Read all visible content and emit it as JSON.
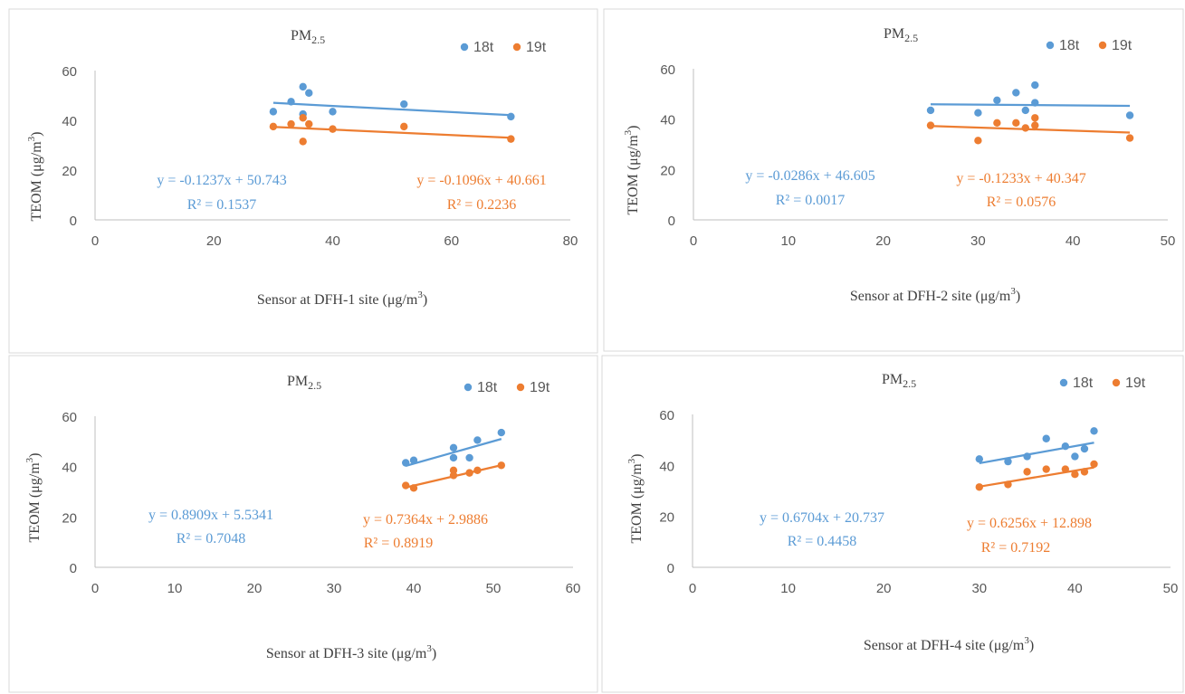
{
  "colors": {
    "18t": "#5b9bd5",
    "19t": "#ed7d31"
  },
  "chart_data": [
    {
      "type": "scatter",
      "title": "PM",
      "title_sub": "2.5",
      "xlabel": "Sensor at DFH-1 site (μg/m",
      "xlabel_sup": "3",
      "xlabel_end": ")",
      "ylabel": "TEOM (μg/m",
      "ylabel_sup": "3",
      "ylabel_end": ")",
      "xlim": [
        0,
        80
      ],
      "ylim": [
        0,
        60
      ],
      "xticks": [
        "0",
        "20",
        "40",
        "60",
        "80"
      ],
      "yticks": [
        "0",
        "20",
        "40",
        "60"
      ],
      "legend_position": "top-right",
      "series": [
        {
          "name": "18t",
          "color": "#5b9bd5",
          "x": [
            30,
            33,
            35,
            35,
            36,
            40,
            52,
            70
          ],
          "y": [
            43.5,
            47.5,
            53.5,
            42.5,
            51,
            43.5,
            46.5,
            41.5
          ],
          "trend": {
            "slope": -0.1237,
            "intercept": 50.743,
            "x": [
              30,
              70
            ]
          },
          "equation": "y = -0.1237x + 50.743",
          "r2": "R² = 0.1537"
        },
        {
          "name": "19t",
          "color": "#ed7d31",
          "x": [
            30,
            33,
            35,
            35,
            36,
            40,
            52,
            70
          ],
          "y": [
            37.5,
            38.5,
            41,
            31.5,
            38.5,
            36.5,
            37.5,
            32.5
          ],
          "trend": {
            "slope": -0.1096,
            "intercept": 40.661,
            "x": [
              30,
              70
            ]
          },
          "equation": "y = -0.1096x + 40.661",
          "r2": "R² = 0.2236"
        }
      ]
    },
    {
      "type": "scatter",
      "title": "PM",
      "title_sub": "2.5",
      "xlabel": "Sensor at DFH-2 site (μg/m",
      "xlabel_sup": "3",
      "xlabel_end": ")",
      "ylabel": "TEOM (μg/m",
      "ylabel_sup": "3",
      "ylabel_end": ")",
      "xlim": [
        0,
        50
      ],
      "ylim": [
        0,
        60
      ],
      "xticks": [
        "0",
        "10",
        "20",
        "30",
        "40",
        "50"
      ],
      "yticks": [
        "0",
        "20",
        "40",
        "60"
      ],
      "legend_position": "top-right",
      "series": [
        {
          "name": "18t",
          "color": "#5b9bd5",
          "x": [
            25,
            30,
            32,
            34,
            35,
            36,
            36,
            46
          ],
          "y": [
            43.5,
            42.5,
            47.5,
            50.5,
            43.5,
            46.5,
            53.5,
            41.5
          ],
          "trend": {
            "slope": -0.0286,
            "intercept": 46.605,
            "x": [
              25,
              46
            ]
          },
          "equation": "y = -0.0286x + 46.605",
          "r2": "R² = 0.0017"
        },
        {
          "name": "19t",
          "color": "#ed7d31",
          "x": [
            25,
            30,
            32,
            34,
            35,
            36,
            36,
            46
          ],
          "y": [
            37.5,
            31.5,
            38.5,
            38.5,
            36.5,
            40.5,
            37.5,
            32.5
          ],
          "trend": {
            "slope": -0.1233,
            "intercept": 40.347,
            "x": [
              25,
              46
            ]
          },
          "equation": "y = -0.1233x + 40.347",
          "r2": "R² = 0.0576"
        }
      ]
    },
    {
      "type": "scatter",
      "title": "PM",
      "title_sub": "2.5",
      "xlabel": "Sensor at DFH-3 site (μg/m",
      "xlabel_sup": "3",
      "xlabel_end": ")",
      "ylabel": "TEOM (μg/m",
      "ylabel_sup": "3",
      "ylabel_end": ")",
      "xlim": [
        0,
        60
      ],
      "ylim": [
        0,
        60
      ],
      "xticks": [
        "0",
        "10",
        "20",
        "30",
        "40",
        "50",
        "60"
      ],
      "yticks": [
        "0",
        "20",
        "40",
        "60"
      ],
      "legend_position": "top-right",
      "series": [
        {
          "name": "18t",
          "color": "#5b9bd5",
          "x": [
            39,
            40,
            45,
            45,
            47,
            48,
            51
          ],
          "y": [
            41.5,
            42.5,
            47.5,
            43.5,
            43.5,
            50.5,
            53.5
          ],
          "trend": {
            "slope": 0.8909,
            "intercept": 5.5341,
            "x": [
              39,
              51
            ]
          },
          "equation": "y = 0.8909x + 5.5341",
          "r2": "R² = 0.7048"
        },
        {
          "name": "19t",
          "color": "#ed7d31",
          "x": [
            39,
            40,
            45,
            45,
            47,
            48,
            51
          ],
          "y": [
            32.5,
            31.5,
            38.5,
            36.5,
            37.5,
            38.5,
            40.5
          ],
          "trend": {
            "slope": 0.7364,
            "intercept": 2.9886,
            "x": [
              39,
              51
            ]
          },
          "equation": "y = 0.7364x + 2.9886",
          "r2": "R² = 0.8919"
        }
      ]
    },
    {
      "type": "scatter",
      "title": "PM",
      "title_sub": "2.5",
      "xlabel": "Sensor at DFH-4 site (μg/m",
      "xlabel_sup": "3",
      "xlabel_end": ")",
      "ylabel": "TEOM (μg/m",
      "ylabel_sup": "3",
      "ylabel_end": ")",
      "xlim": [
        0,
        50
      ],
      "ylim": [
        0,
        60
      ],
      "xticks": [
        "0",
        "10",
        "20",
        "30",
        "40",
        "50"
      ],
      "yticks": [
        "0",
        "20",
        "40",
        "60"
      ],
      "legend_position": "top-right",
      "series": [
        {
          "name": "18t",
          "color": "#5b9bd5",
          "x": [
            30,
            33,
            35,
            37,
            39,
            40,
            41,
            42
          ],
          "y": [
            42.5,
            41.5,
            43.5,
            50.5,
            47.5,
            43.5,
            46.5,
            53.5
          ],
          "trend": {
            "slope": 0.6704,
            "intercept": 20.737,
            "x": [
              30,
              42
            ]
          },
          "equation": "y = 0.6704x + 20.737",
          "r2": "R² = 0.4458"
        },
        {
          "name": "19t",
          "color": "#ed7d31",
          "x": [
            30,
            33,
            35,
            37,
            39,
            40,
            41,
            42
          ],
          "y": [
            31.5,
            32.5,
            37.5,
            38.5,
            38.5,
            36.5,
            37.5,
            40.5
          ],
          "trend": {
            "slope": 0.6256,
            "intercept": 12.898,
            "x": [
              30,
              42
            ]
          },
          "equation": "y = 0.6256x + 12.898",
          "r2": "R² = 0.7192"
        }
      ]
    }
  ]
}
